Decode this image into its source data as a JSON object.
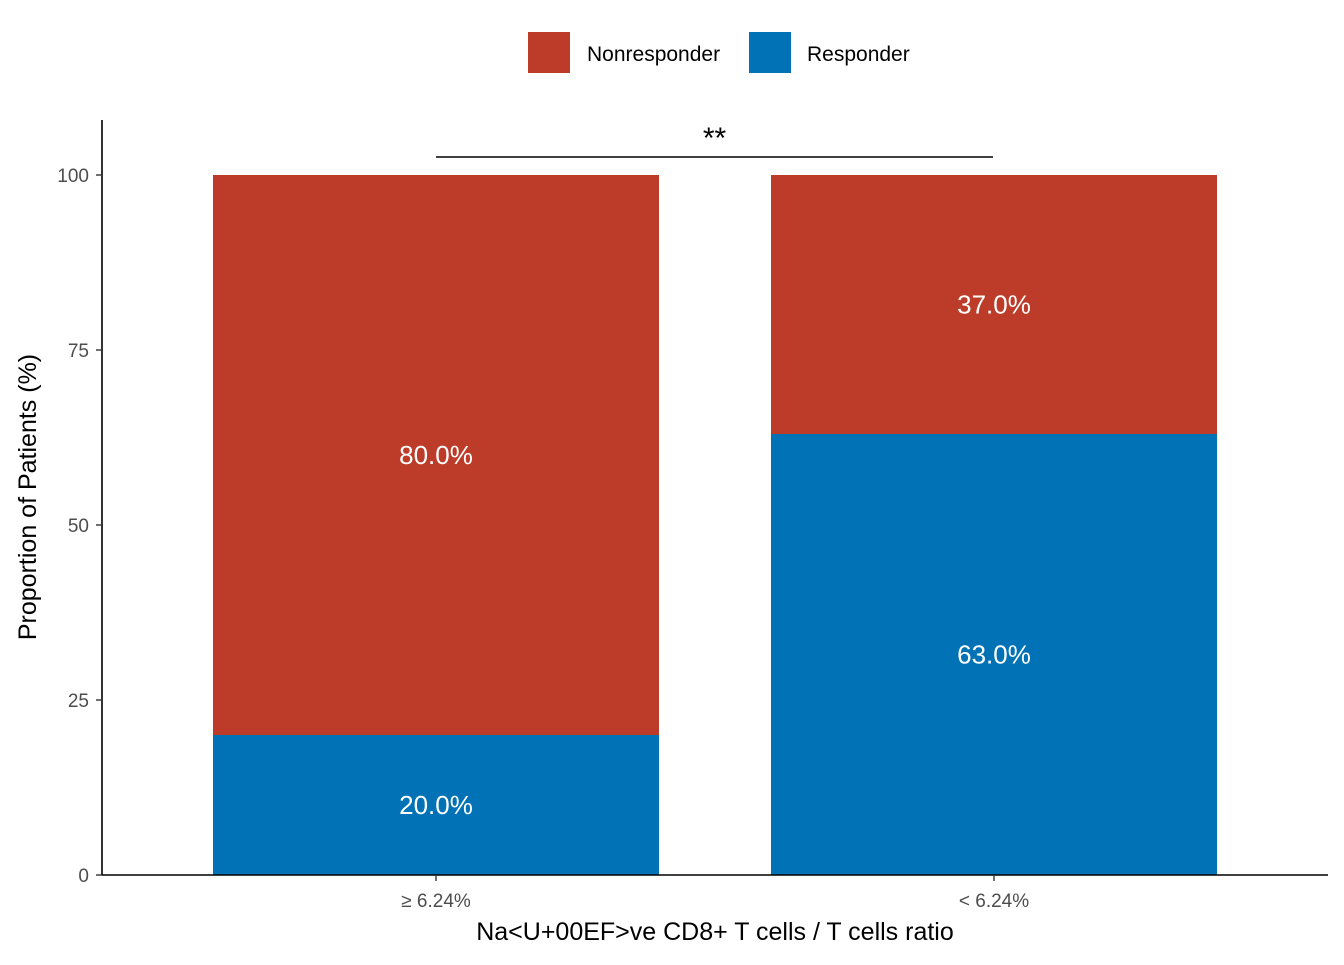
{
  "chart_data": {
    "type": "bar",
    "stacked": true,
    "categories": [
      "≥ 6.24%",
      "< 6.24%"
    ],
    "series": [
      {
        "name": "Responder",
        "values": [
          20.0,
          63.0
        ],
        "labels": [
          "20.0%",
          "63.0%"
        ],
        "color": "#0072B5"
      },
      {
        "name": "Nonresponder",
        "values": [
          80.0,
          37.0
        ],
        "labels": [
          "80.0%",
          "37.0%"
        ],
        "color": "#BC3C29"
      }
    ],
    "legend_order": [
      "Nonresponder",
      "Responder"
    ],
    "legend_position": "top",
    "xlabel": "Na<U+00EF>ve CD8+ T cells / T cells ratio",
    "ylabel": "Proportion of Patients (%)",
    "ylim": [
      0,
      100
    ],
    "yticks": [
      0,
      25,
      50,
      75,
      100
    ],
    "significance": {
      "label": "**",
      "between": [
        "≥ 6.24%",
        "< 6.24%"
      ]
    },
    "grid": false
  }
}
